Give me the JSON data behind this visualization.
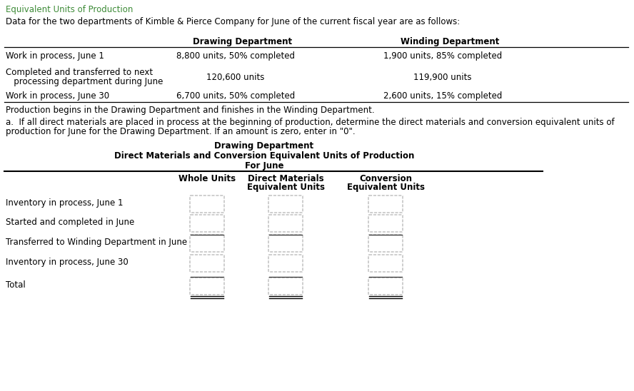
{
  "title_green": "Equivalent Units of Production",
  "intro_text": "Data for the two departments of Kimble & Pierce Company for June of the current fiscal year are as follows:",
  "col_header1": "Drawing Department",
  "col_header2": "Winding Department",
  "table1_row1": [
    "Work in process, June 1",
    "8,800 units, 50% completed",
    "1,900 units, 85% completed"
  ],
  "table1_row2_line1": "Completed and transferred to next",
  "table1_row2_line2": "   processing department during June",
  "table1_row2_data": [
    "120,600 units",
    "119,900 units"
  ],
  "table1_row3": [
    "Work in process, June 30",
    "6,700 units, 50% completed",
    "2,600 units, 15% completed"
  ],
  "note_text": "Production begins in the Drawing Department and finishes in the Winding Department.",
  "question_line1": "a.  If all direct materials are placed in process at the beginning of production, determine the direct materials and conversion equivalent units of",
  "question_line2": "production for June for the Drawing Department. If an amount is zero, enter in \"0\".",
  "section_title1": "Drawing Department",
  "section_title2": "Direct Materials and Conversion Equivalent Units of Production",
  "section_title3": "For June",
  "col2_header": "Whole Units",
  "col3_header_line1": "Direct Materials",
  "col3_header_line2": "Equivalent Units",
  "col4_header_line1": "Conversion",
  "col4_header_line2": "Equivalent Units",
  "table2_rows": [
    "Inventory in process, June 1",
    "Started and completed in June",
    "Transferred to Winding Department in June",
    "Inventory in process, June 30",
    "Total"
  ],
  "bg_color": "#ffffff",
  "green_color": "#3d8b37",
  "text_color": "#000000",
  "box_border_color": "#999999",
  "box_rounded_color": "#aaaaaa"
}
